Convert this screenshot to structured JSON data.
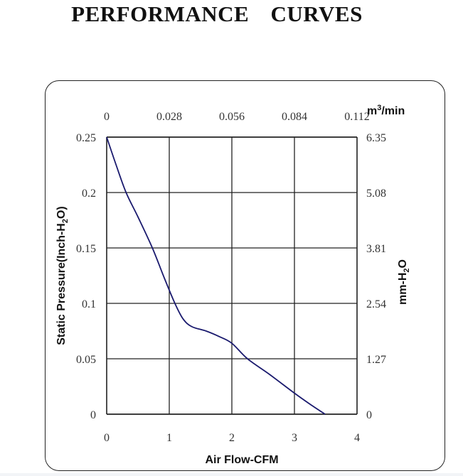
{
  "chart_data": {
    "type": "line",
    "title": "PERFORMANCE CURVES",
    "xlabel": "Air Flow-CFM",
    "ylabel": "Static Pressure(Inch-H2O)",
    "ylabel_main": "Static Pressure(Inch-H",
    "ylabel_sub": "2",
    "ylabel_end": "O)",
    "x2label_main": "m",
    "x2label_sup": "3",
    "x2label_end": "/min",
    "y2label_main": "mm-H",
    "y2label_sub": "2",
    "y2label_end": "O",
    "xlim": [
      0,
      4
    ],
    "ylim": [
      0,
      0.25
    ],
    "x_ticks": [
      "0",
      "1",
      "2",
      "3",
      "4"
    ],
    "y_ticks": [
      "0",
      "0.05",
      "0.1",
      "0.15",
      "0.2",
      "0.25"
    ],
    "x2_ticks": [
      "0",
      "0.028",
      "0.056",
      "0.084",
      "0.112"
    ],
    "y2_ticks": [
      "0",
      "1.27",
      "2.54",
      "3.81",
      "5.08",
      "6.35"
    ],
    "grid": true,
    "line_color": "#1a1a6e",
    "series": [
      {
        "name": "Static Pressure",
        "x": [
          0,
          0.15,
          0.31,
          0.5,
          0.73,
          0.92,
          1.09,
          1.22,
          1.36,
          1.59,
          1.8,
          2.0,
          2.25,
          2.6,
          3.0,
          3.25,
          3.49
        ],
        "y": [
          0.25,
          0.225,
          0.2,
          0.178,
          0.15,
          0.123,
          0.1,
          0.086,
          0.079,
          0.075,
          0.07,
          0.064,
          0.05,
          0.036,
          0.019,
          0.009,
          0
        ]
      }
    ]
  }
}
